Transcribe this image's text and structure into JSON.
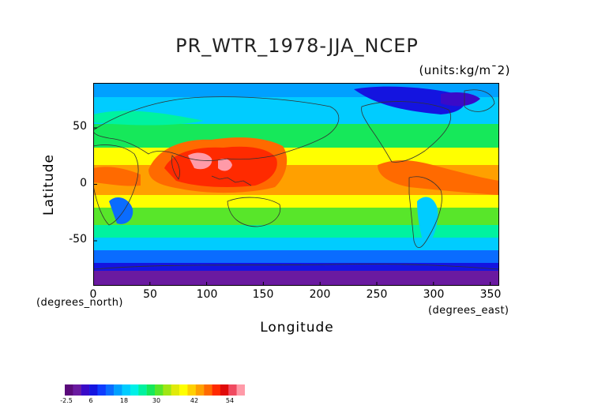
{
  "title": "PR_WTR_1978-JJA_NCEP",
  "units_label": "(units:kg/m¯2)",
  "y_axis": {
    "label": "Latitude",
    "unit": "(degrees_north)",
    "ticks": [
      "50",
      "0",
      "-50"
    ],
    "tick_values": [
      50,
      0,
      -50
    ],
    "range": [
      -90,
      90
    ]
  },
  "x_axis": {
    "label": "Longitude",
    "unit": "(degrees_east)",
    "ticks": [
      "0",
      "50",
      "100",
      "150",
      "200",
      "250",
      "300",
      "350"
    ],
    "tick_values": [
      0,
      50,
      100,
      150,
      200,
      250,
      300,
      350
    ],
    "range": [
      0,
      358
    ]
  },
  "colorbar": {
    "labels": [
      "-2.5",
      "6",
      "18",
      "30",
      "42",
      "54"
    ],
    "colors": [
      "#5a0a7a",
      "#6a1aa0",
      "#3a0ac8",
      "#1414e0",
      "#0f3cff",
      "#0a6cff",
      "#00a0ff",
      "#00ccff",
      "#00f0e8",
      "#00f2a0",
      "#16e85a",
      "#58e62a",
      "#a0e614",
      "#e0ea0a",
      "#ffff00",
      "#ffd000",
      "#ffa000",
      "#ff6a00",
      "#ff2a00",
      "#e00a0a",
      "#f04a60",
      "#ff9aa8"
    ]
  },
  "map": {
    "colors": {
      "land_outline": "#333333",
      "high": "#ff2222",
      "peak": "#ff9aa8"
    }
  }
}
